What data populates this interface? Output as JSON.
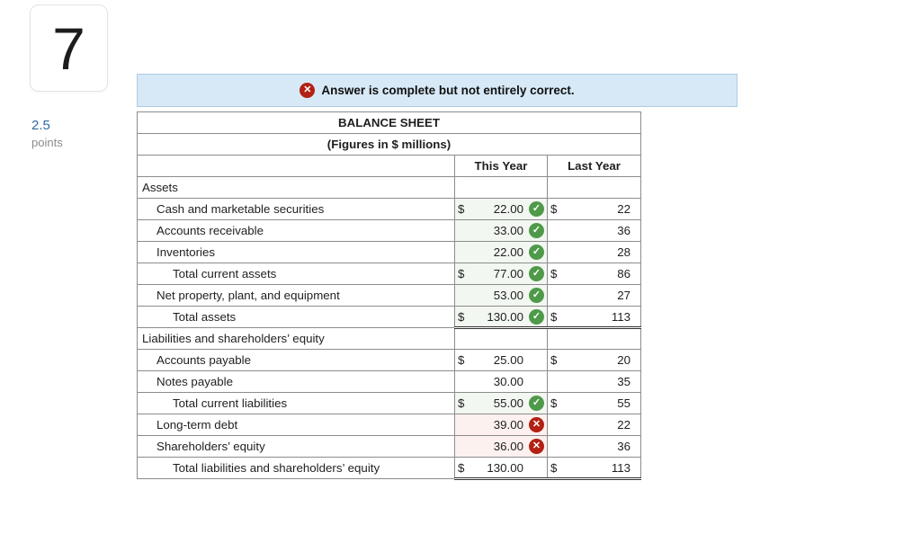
{
  "question": {
    "number": "7",
    "points_value": "2.5",
    "points_label": "points"
  },
  "banner": {
    "text": "Answer is complete but not entirely correct.",
    "icon": "x-circle"
  },
  "table": {
    "title": "BALANCE SHEET",
    "subtitle": "(Figures in $ millions)",
    "columns": {
      "this_year": "This Year",
      "last_year": "Last Year"
    },
    "rows": [
      {
        "label": "Assets",
        "indent": 0,
        "this_year": {
          "empty": true
        },
        "last_year": {
          "empty": true
        },
        "total": null
      },
      {
        "label": "Cash and marketable securities",
        "indent": 1,
        "this_year": {
          "dollar": "$",
          "value": "22.00",
          "status": "correct"
        },
        "last_year": {
          "dollar": "$",
          "value": "22"
        },
        "total": null
      },
      {
        "label": "Accounts receivable",
        "indent": 1,
        "this_year": {
          "dollar": "",
          "value": "33.00",
          "status": "correct"
        },
        "last_year": {
          "dollar": "",
          "value": "36"
        },
        "total": null
      },
      {
        "label": "Inventories",
        "indent": 1,
        "this_year": {
          "dollar": "",
          "value": "22.00",
          "status": "correct"
        },
        "last_year": {
          "dollar": "",
          "value": "28"
        },
        "total": null
      },
      {
        "label": "Total current assets",
        "indent": 2,
        "this_year": {
          "dollar": "$",
          "value": "77.00",
          "status": "correct"
        },
        "last_year": {
          "dollar": "$",
          "value": "86"
        },
        "total": null
      },
      {
        "label": "Net property, plant, and equipment",
        "indent": 1,
        "this_year": {
          "dollar": "",
          "value": "53.00",
          "status": "correct"
        },
        "last_year": {
          "dollar": "",
          "value": "27"
        },
        "total": null
      },
      {
        "label": "Total assets",
        "indent": 2,
        "this_year": {
          "dollar": "$",
          "value": "130.00",
          "status": "correct"
        },
        "last_year": {
          "dollar": "$",
          "value": "113"
        },
        "total": "grand"
      },
      {
        "label": "Liabilities and shareholders’ equity",
        "indent": 0,
        "this_year": {
          "empty": true
        },
        "last_year": {
          "empty": true
        },
        "total": null
      },
      {
        "label": "Accounts payable",
        "indent": 1,
        "this_year": {
          "dollar": "$",
          "value": "25.00",
          "status": "none"
        },
        "last_year": {
          "dollar": "$",
          "value": "20"
        },
        "total": null
      },
      {
        "label": "Notes payable",
        "indent": 1,
        "this_year": {
          "dollar": "",
          "value": "30.00",
          "status": "none"
        },
        "last_year": {
          "dollar": "",
          "value": "35"
        },
        "total": null
      },
      {
        "label": "Total current liabilities",
        "indent": 2,
        "this_year": {
          "dollar": "$",
          "value": "55.00",
          "status": "correct"
        },
        "last_year": {
          "dollar": "$",
          "value": "55"
        },
        "total": null
      },
      {
        "label": "Long-term debt",
        "indent": 1,
        "this_year": {
          "dollar": "",
          "value": "39.00",
          "status": "incorrect"
        },
        "last_year": {
          "dollar": "",
          "value": "22"
        },
        "total": null
      },
      {
        "label": "Shareholders’ equity",
        "indent": 1,
        "this_year": {
          "dollar": "",
          "value": "36.00",
          "status": "incorrect"
        },
        "last_year": {
          "dollar": "",
          "value": "36"
        },
        "total": null
      },
      {
        "label": "Total liabilities and shareholders’ equity",
        "indent": 2,
        "this_year": {
          "dollar": "$",
          "value": "130.00",
          "status": "none"
        },
        "last_year": {
          "dollar": "$",
          "value": "113"
        },
        "total": "grand"
      }
    ]
  },
  "colors": {
    "correct_icon": "#4f9a4a",
    "incorrect_icon": "#b32114",
    "correct_cell_bg": "#f2f7f1",
    "incorrect_cell_bg": "#fcf1ef",
    "banner_bg": "#d7e9f7",
    "header_row_bg": "#d8dbe2",
    "points_accent": "#2d6ca2"
  }
}
